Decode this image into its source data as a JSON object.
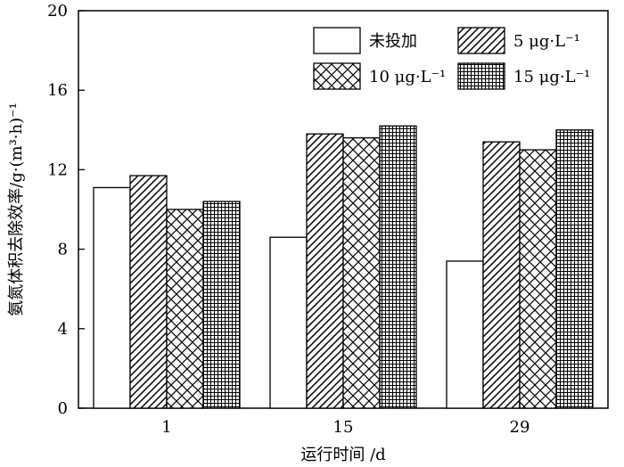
{
  "chart_data": {
    "type": "bar",
    "categories": [
      "1",
      "15",
      "29"
    ],
    "series": [
      {
        "name": "未投加",
        "pattern": "none",
        "values": [
          11.1,
          8.6,
          7.4
        ]
      },
      {
        "name": "5 μg·L⁻¹",
        "pattern": "diagonal",
        "values": [
          11.7,
          13.8,
          13.4
        ]
      },
      {
        "name": "10 μg·L⁻¹",
        "pattern": "crosshatch",
        "values": [
          10.0,
          13.6,
          13.0
        ]
      },
      {
        "name": "15 μg·L⁻¹",
        "pattern": "grid",
        "values": [
          10.4,
          14.2,
          14.0
        ]
      }
    ],
    "xlabel": "运行时间 /d",
    "ylabel": "氨氮体积去除效率/g·(m³·h)⁻¹",
    "ylim": [
      0,
      20
    ],
    "yticks": [
      "0",
      "4",
      "8",
      "12",
      "16",
      "20"
    ],
    "grid": false,
    "legend_position": "top-right"
  }
}
